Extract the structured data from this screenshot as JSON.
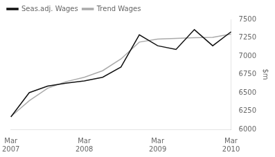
{
  "chart_data": {
    "type": "line",
    "ylabel": "$m",
    "categories": [
      "Mar\n2007",
      null,
      null,
      null,
      "Mar\n2008",
      null,
      null,
      null,
      "Mar\n2009",
      null,
      null,
      null,
      "Mar\n2010"
    ],
    "series": [
      {
        "name": "Seas.adj. Wages",
        "color": "#111111",
        "values": [
          6170,
          6500,
          6590,
          6630,
          6660,
          6710,
          6850,
          7290,
          7140,
          7090,
          7360,
          7140,
          7330
        ]
      },
      {
        "name": "Trend Wages",
        "color": "#aaaaaa",
        "values": [
          6175,
          6390,
          6560,
          6650,
          6710,
          6800,
          6960,
          7190,
          7230,
          7240,
          7250,
          7255,
          7300
        ]
      }
    ],
    "ylim": [
      6000,
      7500
    ],
    "yticks": [
      6000,
      6250,
      6500,
      6750,
      7000,
      7250,
      7500
    ],
    "grid": false,
    "legend": "upper left"
  }
}
